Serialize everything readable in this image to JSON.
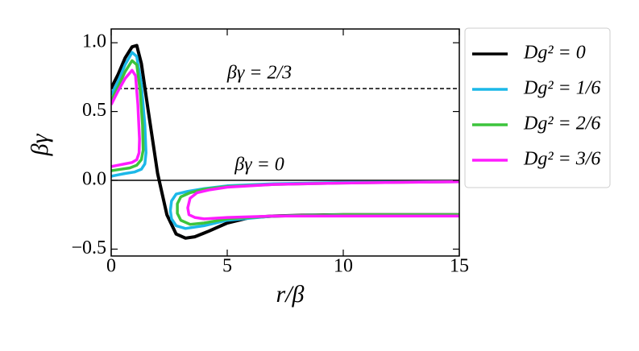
{
  "chart_data": {
    "type": "line",
    "xlabel": "r/β",
    "ylabel": "βγ",
    "xlim": [
      0,
      15
    ],
    "ylim": [
      -0.55,
      1.1
    ],
    "xticks": [
      0,
      5,
      10,
      15
    ],
    "yticks": [
      {
        "value": -0.5,
        "label": "−0.5"
      },
      {
        "value": 0,
        "label": "0.0"
      },
      {
        "value": 0.5,
        "label": "0.5"
      },
      {
        "value": 1,
        "label": "1.0"
      }
    ],
    "hlines": [
      {
        "y": 0.6667,
        "label": "βγ = 2/3",
        "style": "dashed"
      },
      {
        "y": 0,
        "label": "βγ = 0",
        "style": "solid"
      }
    ],
    "legend": "outside-right",
    "series": [
      {
        "name": "Dg² = 0",
        "color": "#000000",
        "x": [
          0,
          0.3,
          0.6,
          0.9,
          1.1,
          1.3,
          1.6,
          2.0,
          2.4,
          2.8,
          3.2,
          3.6,
          4.2,
          5,
          6,
          7,
          8,
          10,
          12,
          15
        ],
        "values": [
          0.67,
          0.77,
          0.89,
          0.97,
          0.98,
          0.85,
          0.5,
          0.05,
          -0.25,
          -0.39,
          -0.42,
          -0.41,
          -0.37,
          -0.31,
          -0.27,
          -0.26,
          -0.255,
          -0.25,
          -0.25,
          -0.25
        ]
      },
      {
        "name": "Dg² = 1/6",
        "color": "#1cb8e8",
        "x": [
          0,
          0.3,
          0.6,
          0.9,
          1.1,
          1.3,
          1.45,
          1.5,
          1.45,
          1.3,
          1.0,
          0.6,
          0.3,
          0,
          null,
          15,
          10,
          7,
          5,
          4,
          3.3,
          2.8,
          2.6,
          2.55,
          2.6,
          2.8,
          3.2,
          4,
          5,
          7,
          10,
          15
        ],
        "values": [
          0.62,
          0.72,
          0.84,
          0.93,
          0.9,
          0.7,
          0.4,
          0.2,
          0.12,
          0.08,
          0.06,
          0.05,
          0.04,
          0.03,
          null,
          -0.01,
          -0.015,
          -0.025,
          -0.04,
          -0.06,
          -0.08,
          -0.1,
          -0.15,
          -0.22,
          -0.28,
          -0.33,
          -0.35,
          -0.33,
          -0.29,
          -0.26,
          -0.25,
          -0.25
        ]
      },
      {
        "name": "Dg² = 2/6",
        "color": "#3cc43c",
        "x": [
          0,
          0.3,
          0.6,
          0.9,
          1.1,
          1.25,
          1.35,
          1.38,
          1.3,
          1.1,
          0.8,
          0.4,
          0,
          null,
          15,
          10,
          7,
          5,
          4,
          3.4,
          3.0,
          2.85,
          2.85,
          3.0,
          3.4,
          4,
          5,
          7,
          10,
          15
        ],
        "values": [
          0.58,
          0.68,
          0.79,
          0.87,
          0.84,
          0.65,
          0.4,
          0.22,
          0.15,
          0.11,
          0.09,
          0.08,
          0.07,
          null,
          -0.01,
          -0.02,
          -0.03,
          -0.045,
          -0.065,
          -0.09,
          -0.12,
          -0.17,
          -0.24,
          -0.29,
          -0.32,
          -0.31,
          -0.28,
          -0.26,
          -0.25,
          -0.25
        ]
      },
      {
        "name": "Dg² = 3/6",
        "color": "#ff1cff",
        "x": [
          0,
          0.3,
          0.6,
          0.9,
          1.05,
          1.15,
          1.22,
          1.2,
          1.1,
          0.9,
          0.6,
          0.3,
          0,
          null,
          15,
          10,
          7,
          5,
          4.2,
          3.7,
          3.4,
          3.3,
          3.35,
          3.6,
          4,
          5,
          7,
          10,
          15
        ],
        "values": [
          0.55,
          0.65,
          0.74,
          0.8,
          0.76,
          0.55,
          0.3,
          0.2,
          0.15,
          0.13,
          0.12,
          0.11,
          0.1,
          null,
          -0.01,
          -0.02,
          -0.03,
          -0.05,
          -0.07,
          -0.09,
          -0.13,
          -0.2,
          -0.25,
          -0.27,
          -0.28,
          -0.27,
          -0.26,
          -0.26,
          -0.26
        ]
      }
    ]
  }
}
